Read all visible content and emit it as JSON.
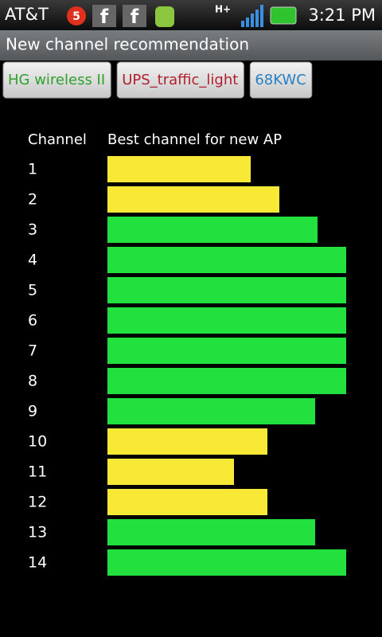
{
  "status_bar": {
    "carrier": "AT&T",
    "notification_count": "5",
    "network": "H+",
    "time": "3:21 PM"
  },
  "app_title": "New channel recommendation",
  "tabs": [
    {
      "label": "HG wireless II",
      "color": "#2ea12e"
    },
    {
      "label": "UPS_traffic_light",
      "color": "#b01f2e"
    },
    {
      "label": "68KWC",
      "color": "#2a7fc0"
    }
  ],
  "chart_data": {
    "type": "bar",
    "orientation": "horizontal",
    "category_header": "Channel",
    "value_header": "Best channel for new AP",
    "categories": [
      "1",
      "2",
      "3",
      "4",
      "5",
      "6",
      "7",
      "8",
      "9",
      "10",
      "11",
      "12",
      "13",
      "14"
    ],
    "values": [
      60,
      72,
      88,
      100,
      100,
      100,
      100,
      100,
      87,
      67,
      53,
      67,
      87,
      100
    ],
    "colors": [
      "#f7e935",
      "#f7e935",
      "#22e03e",
      "#22e03e",
      "#22e03e",
      "#22e03e",
      "#22e03e",
      "#22e03e",
      "#22e03e",
      "#f7e935",
      "#f7e935",
      "#f7e935",
      "#22e03e",
      "#22e03e"
    ],
    "xlim": [
      0,
      100
    ]
  }
}
